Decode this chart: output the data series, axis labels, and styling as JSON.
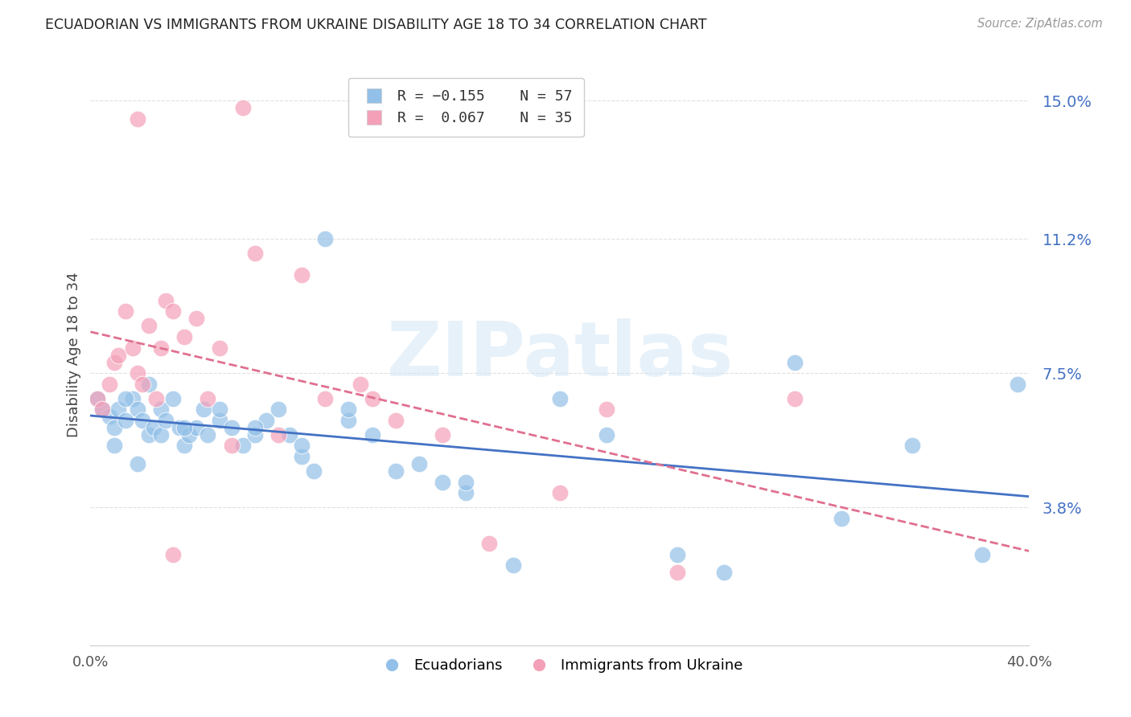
{
  "title": "ECUADORIAN VS IMMIGRANTS FROM UKRAINE DISABILITY AGE 18 TO 34 CORRELATION CHART",
  "source": "Source: ZipAtlas.com",
  "ylabel": "Disability Age 18 to 34",
  "xlim": [
    0.0,
    0.4
  ],
  "ylim": [
    0.0,
    0.16
  ],
  "yticks": [
    0.038,
    0.075,
    0.112,
    0.15
  ],
  "ytick_labels": [
    "3.8%",
    "7.5%",
    "11.2%",
    "15.0%"
  ],
  "xtick_positions": [
    0.0,
    0.1,
    0.2,
    0.3,
    0.4
  ],
  "xtick_labels": [
    "0.0%",
    "",
    "",
    "",
    "40.0%"
  ],
  "background_color": "#ffffff",
  "grid_color": "#e0e0e0",
  "blue_color": "#92C0E8",
  "pink_color": "#F4A0B8",
  "blue_line_color": "#4472C4",
  "pink_line_color": "#E07090",
  "watermark": "ZIPatlas",
  "blue_scatter_x": [
    0.003,
    0.005,
    0.008,
    0.01,
    0.012,
    0.015,
    0.018,
    0.02,
    0.022,
    0.025,
    0.027,
    0.03,
    0.03,
    0.032,
    0.035,
    0.038,
    0.04,
    0.042,
    0.045,
    0.048,
    0.05,
    0.055,
    0.06,
    0.065,
    0.07,
    0.075,
    0.08,
    0.085,
    0.09,
    0.095,
    0.1,
    0.11,
    0.12,
    0.13,
    0.14,
    0.15,
    0.16,
    0.18,
    0.2,
    0.22,
    0.25,
    0.27,
    0.3,
    0.32,
    0.35,
    0.38,
    0.395,
    0.01,
    0.02,
    0.015,
    0.025,
    0.04,
    0.055,
    0.07,
    0.09,
    0.11,
    0.16
  ],
  "blue_scatter_y": [
    0.068,
    0.065,
    0.063,
    0.06,
    0.065,
    0.062,
    0.068,
    0.065,
    0.062,
    0.058,
    0.06,
    0.065,
    0.058,
    0.062,
    0.068,
    0.06,
    0.055,
    0.058,
    0.06,
    0.065,
    0.058,
    0.062,
    0.06,
    0.055,
    0.058,
    0.062,
    0.065,
    0.058,
    0.052,
    0.048,
    0.112,
    0.062,
    0.058,
    0.048,
    0.05,
    0.045,
    0.042,
    0.022,
    0.068,
    0.058,
    0.025,
    0.02,
    0.078,
    0.035,
    0.055,
    0.025,
    0.072,
    0.055,
    0.05,
    0.068,
    0.072,
    0.06,
    0.065,
    0.06,
    0.055,
    0.065,
    0.045
  ],
  "pink_scatter_x": [
    0.003,
    0.005,
    0.008,
    0.01,
    0.012,
    0.015,
    0.018,
    0.02,
    0.022,
    0.025,
    0.028,
    0.03,
    0.032,
    0.035,
    0.04,
    0.045,
    0.05,
    0.055,
    0.06,
    0.065,
    0.07,
    0.08,
    0.09,
    0.1,
    0.115,
    0.13,
    0.15,
    0.17,
    0.2,
    0.22,
    0.25,
    0.3,
    0.02,
    0.035,
    0.12
  ],
  "pink_scatter_y": [
    0.068,
    0.065,
    0.072,
    0.078,
    0.08,
    0.092,
    0.082,
    0.075,
    0.072,
    0.088,
    0.068,
    0.082,
    0.095,
    0.092,
    0.085,
    0.09,
    0.068,
    0.082,
    0.055,
    0.148,
    0.108,
    0.058,
    0.102,
    0.068,
    0.072,
    0.062,
    0.058,
    0.028,
    0.042,
    0.065,
    0.02,
    0.068,
    0.145,
    0.025,
    0.068
  ]
}
